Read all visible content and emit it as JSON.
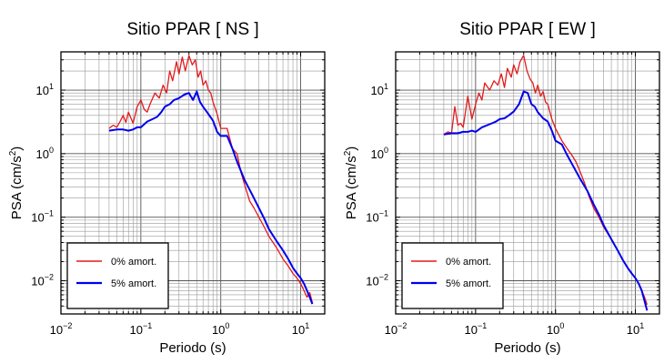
{
  "chart_data": [
    {
      "type": "line",
      "title": "Sitio PPAR [ NS ]",
      "xlabel": "Periodo (s)",
      "ylabel": "PSA (cm/s²)",
      "xscale": "log",
      "yscale": "log",
      "xlim": [
        0.01,
        20
      ],
      "ylim": [
        0.003,
        40
      ],
      "grid": true,
      "legend_position": "bottom-left",
      "x_ticks": [
        "10−2",
        "10−1",
        "100",
        "101"
      ],
      "y_ticks": [
        "10−2",
        "10−1",
        "100",
        "101"
      ],
      "colors": {
        "0% amort.": "#e31a1c",
        "5% amort.": "#0000ee"
      },
      "series": [
        {
          "name": "0% amort.",
          "x": [
            0.04,
            0.045,
            0.05,
            0.055,
            0.06,
            0.065,
            0.07,
            0.08,
            0.09,
            0.1,
            0.11,
            0.12,
            0.13,
            0.15,
            0.17,
            0.19,
            0.21,
            0.23,
            0.25,
            0.28,
            0.3,
            0.33,
            0.36,
            0.4,
            0.44,
            0.48,
            0.52,
            0.56,
            0.6,
            0.65,
            0.7,
            0.75,
            0.8,
            0.9,
            1.0,
            1.2,
            1.4,
            1.6,
            1.8,
            2.0,
            2.3,
            2.6,
            3.0,
            3.5,
            4.0,
            5.0,
            6.0,
            7.0,
            8.0,
            9.0,
            10.0,
            11.0,
            12.0,
            13.0,
            14.0
          ],
          "y": [
            2.5,
            2.8,
            2.6,
            3.2,
            4.0,
            3.1,
            4.5,
            3.0,
            5.5,
            7.0,
            5.0,
            4.5,
            6.0,
            9.0,
            7.5,
            12.0,
            9.0,
            20.0,
            14.0,
            28.0,
            18.0,
            33.0,
            20.0,
            35.0,
            25.0,
            30.0,
            16.0,
            20.0,
            12.0,
            14.0,
            10.0,
            9.0,
            6.5,
            4.2,
            2.5,
            2.5,
            1.2,
            1.0,
            0.5,
            0.32,
            0.18,
            0.14,
            0.1,
            0.07,
            0.05,
            0.033,
            0.022,
            0.017,
            0.013,
            0.011,
            0.009,
            0.007,
            0.0055,
            0.0065,
            0.0045
          ]
        },
        {
          "name": "5% amort.",
          "x": [
            0.04,
            0.05,
            0.06,
            0.07,
            0.08,
            0.09,
            0.1,
            0.12,
            0.14,
            0.16,
            0.18,
            0.2,
            0.23,
            0.26,
            0.3,
            0.35,
            0.4,
            0.45,
            0.5,
            0.55,
            0.6,
            0.7,
            0.8,
            0.9,
            1.0,
            1.2,
            1.4,
            1.6,
            2.0,
            2.5,
            3.0,
            3.5,
            4.0,
            5.0,
            6.0,
            7.0,
            8.0,
            9.0,
            10.0,
            11.0,
            12.0,
            13.0,
            14.0
          ],
          "y": [
            2.3,
            2.4,
            2.4,
            2.3,
            2.4,
            2.6,
            2.6,
            3.2,
            3.5,
            3.8,
            4.5,
            5.5,
            6.0,
            7.0,
            7.5,
            8.5,
            9.0,
            7.0,
            9.5,
            6.5,
            5.5,
            4.2,
            3.3,
            2.2,
            1.9,
            1.9,
            1.2,
            0.75,
            0.38,
            0.22,
            0.14,
            0.095,
            0.065,
            0.042,
            0.03,
            0.022,
            0.016,
            0.013,
            0.011,
            0.009,
            0.007,
            0.0055,
            0.0043
          ]
        }
      ]
    },
    {
      "type": "line",
      "title": "Sitio PPAR [ EW ]",
      "xlabel": "Periodo (s)",
      "ylabel": "PSA (cm/s²)",
      "xscale": "log",
      "yscale": "log",
      "xlim": [
        0.01,
        20
      ],
      "ylim": [
        0.003,
        40
      ],
      "grid": true,
      "legend_position": "bottom-left",
      "x_ticks": [
        "10−2",
        "10−1",
        "100",
        "101"
      ],
      "y_ticks": [
        "10−2",
        "10−1",
        "100",
        "101"
      ],
      "colors": {
        "0% amort.": "#e31a1c",
        "5% amort.": "#0000ee"
      },
      "series": [
        {
          "name": "0% amort.",
          "x": [
            0.04,
            0.045,
            0.05,
            0.055,
            0.06,
            0.065,
            0.07,
            0.08,
            0.09,
            0.1,
            0.11,
            0.12,
            0.13,
            0.15,
            0.17,
            0.19,
            0.21,
            0.23,
            0.25,
            0.28,
            0.3,
            0.33,
            0.36,
            0.4,
            0.44,
            0.48,
            0.52,
            0.56,
            0.6,
            0.65,
            0.7,
            0.75,
            0.8,
            0.9,
            1.0,
            1.2,
            1.4,
            1.6,
            1.8,
            2.0,
            2.3,
            2.6,
            3.0,
            3.5,
            4.0,
            5.0,
            6.0,
            7.0,
            8.0,
            9.0,
            10.0,
            11.0,
            12.0,
            13.0,
            14.0
          ],
          "y": [
            2.0,
            2.2,
            2.1,
            5.5,
            2.8,
            3.0,
            2.6,
            8.0,
            3.5,
            6.0,
            9.0,
            7.0,
            13.0,
            10.0,
            14.0,
            12.0,
            18.0,
            11.0,
            22.0,
            16.0,
            25.0,
            18.0,
            28.0,
            35.0,
            20.0,
            15.0,
            13.0,
            9.0,
            12.0,
            8.0,
            9.5,
            6.5,
            6.0,
            3.5,
            2.5,
            1.6,
            1.2,
            0.95,
            0.75,
            0.55,
            0.35,
            0.22,
            0.14,
            0.1,
            0.07,
            0.045,
            0.03,
            0.021,
            0.016,
            0.013,
            0.011,
            0.009,
            0.007,
            0.0055,
            0.0042
          ]
        },
        {
          "name": "5% amort.",
          "x": [
            0.04,
            0.05,
            0.06,
            0.07,
            0.08,
            0.09,
            0.1,
            0.12,
            0.14,
            0.16,
            0.18,
            0.2,
            0.23,
            0.26,
            0.3,
            0.35,
            0.4,
            0.45,
            0.5,
            0.55,
            0.6,
            0.7,
            0.8,
            0.9,
            1.0,
            1.2,
            1.4,
            1.6,
            2.0,
            2.5,
            3.0,
            3.5,
            4.0,
            5.0,
            6.0,
            7.0,
            8.0,
            9.0,
            10.0,
            11.0,
            12.0,
            13.0,
            14.0
          ],
          "y": [
            2.0,
            2.1,
            2.1,
            2.2,
            2.2,
            2.3,
            2.2,
            2.6,
            2.8,
            3.0,
            3.2,
            3.5,
            3.6,
            4.0,
            4.6,
            6.0,
            9.5,
            9.0,
            6.0,
            5.5,
            4.5,
            3.6,
            3.2,
            2.3,
            1.6,
            1.4,
            0.95,
            0.7,
            0.42,
            0.26,
            0.16,
            0.11,
            0.075,
            0.045,
            0.03,
            0.021,
            0.016,
            0.013,
            0.011,
            0.009,
            0.007,
            0.0048,
            0.0034
          ]
        }
      ]
    }
  ]
}
